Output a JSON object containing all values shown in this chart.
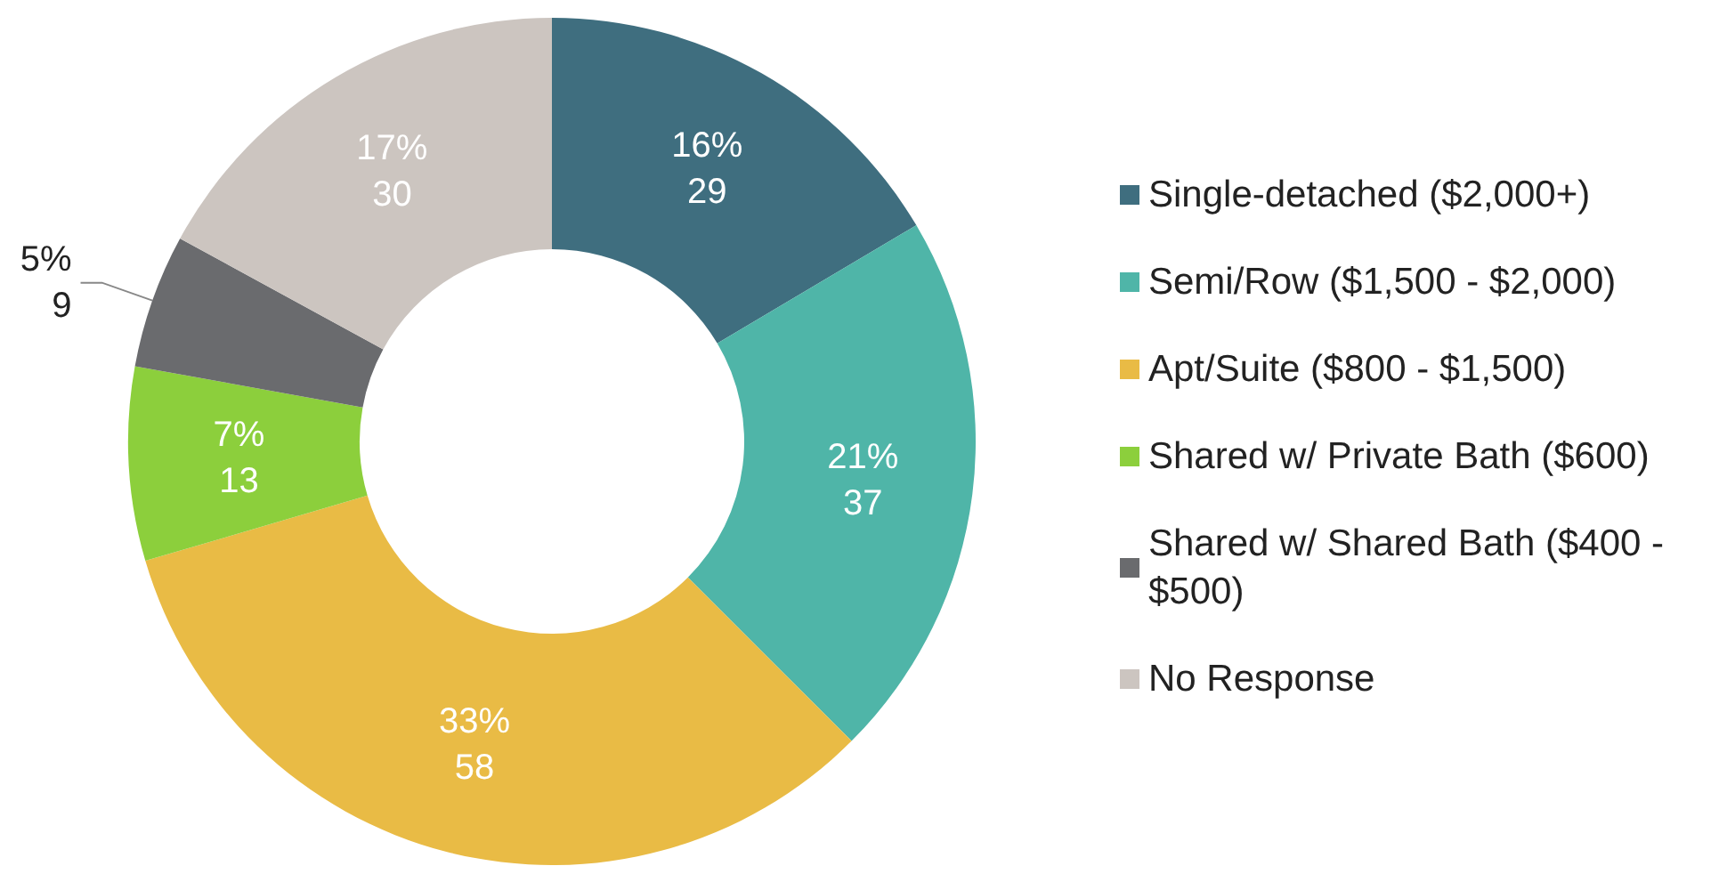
{
  "chart_data": {
    "type": "donut",
    "categories": [
      "Single-detached ($2,000+)",
      "Semi/Row ($1,500 - $2,000)",
      "Apt/Suite ($800 - $1,500)",
      "Shared w/ Private Bath ($600)",
      "Shared w/ Shared Bath ($400 - $500)",
      "No Response"
    ],
    "values": [
      29,
      37,
      58,
      13,
      9,
      30
    ],
    "colors": [
      "#3f6e7f",
      "#4fb5a8",
      "#e9bb45",
      "#8ccf3c",
      "#6a6b6e",
      "#ccc5c0"
    ],
    "value_labels": [
      "16%\n29",
      "21%\n37",
      "33%\n58",
      "7%\n13",
      "5%\n9",
      "17%\n30"
    ],
    "legend": "right"
  }
}
